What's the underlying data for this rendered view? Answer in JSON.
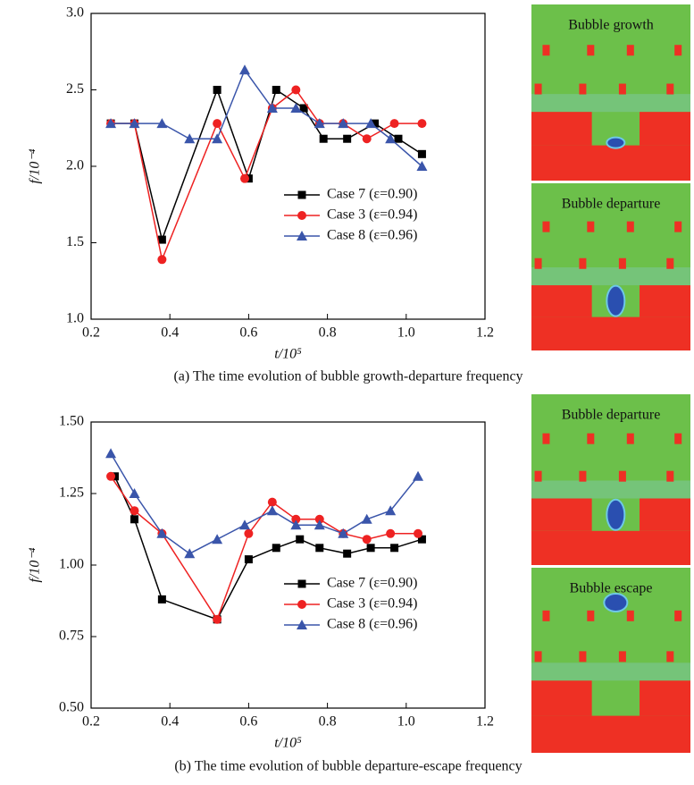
{
  "chart_data": [
    {
      "type": "line",
      "caption": "(a) The time evolution of bubble growth-departure frequency",
      "x_label": "t/10⁵",
      "y_label": "f/10⁻⁴",
      "xlim": [
        0.2,
        1.2
      ],
      "xticks": [
        0.2,
        0.4,
        0.6,
        0.8,
        {
          "value": 1,
          "label": "1.0"
        },
        1.2
      ],
      "ylim": [
        1,
        3
      ],
      "yticks": [
        {
          "value": 1,
          "label": "1.0"
        },
        1.5,
        {
          "value": 2,
          "label": "2.0"
        },
        2.5,
        {
          "value": 3,
          "label": "3.0"
        }
      ],
      "legend": "lower right",
      "series": [
        {
          "name": "Case 7 (ε=0.90)",
          "color": "#000000",
          "marker": "square",
          "x": [
            0.25,
            0.31,
            0.38,
            0.52,
            0.6,
            0.67,
            0.74,
            0.79,
            0.85,
            0.92,
            0.98,
            1.04
          ],
          "values": [
            2.28,
            2.28,
            1.52,
            2.5,
            1.92,
            2.5,
            2.38,
            2.18,
            2.18,
            2.28,
            2.18,
            2.08
          ]
        },
        {
          "name": "Case 3 (ε=0.94)",
          "color": "#ee2222",
          "marker": "circle",
          "x": [
            0.25,
            0.31,
            0.38,
            0.52,
            0.59,
            0.66,
            0.72,
            0.78,
            0.84,
            0.9,
            0.97,
            1.04
          ],
          "values": [
            2.28,
            2.28,
            1.39,
            2.28,
            1.92,
            2.38,
            2.5,
            2.28,
            2.28,
            2.18,
            2.28,
            2.28
          ]
        },
        {
          "name": "Case 8 (ε=0.96)",
          "color": "#3a55aa",
          "marker": "triangle",
          "x": [
            0.25,
            0.31,
            0.38,
            0.45,
            0.52,
            0.59,
            0.66,
            0.72,
            0.78,
            0.84,
            0.91,
            0.96,
            1.04
          ],
          "values": [
            2.28,
            2.28,
            2.28,
            2.18,
            2.18,
            2.63,
            2.38,
            2.38,
            2.28,
            2.28,
            2.28,
            2.18,
            2.0
          ]
        }
      ]
    },
    {
      "type": "line",
      "caption": "(b) The time evolution of bubble departure-escape frequency",
      "x_label": "t/10⁵",
      "y_label": "f/10⁻⁴",
      "xlim": [
        0.2,
        1.2
      ],
      "xticks": [
        0.2,
        0.4,
        0.6,
        0.8,
        {
          "value": 1,
          "label": "1.0"
        },
        1.2
      ],
      "ylim": [
        0.5,
        1.5
      ],
      "yticks": [
        {
          "value": 0.5,
          "label": "0.50"
        },
        0.75,
        {
          "value": 1,
          "label": "1.00"
        },
        1.25,
        {
          "value": 1.5,
          "label": "1.50"
        }
      ],
      "legend": "lower right",
      "series": [
        {
          "name": "Case 7 (ε=0.90)",
          "color": "#000000",
          "marker": "square",
          "x": [
            0.26,
            0.31,
            0.38,
            0.52,
            0.6,
            0.67,
            0.73,
            0.78,
            0.85,
            0.91,
            0.97,
            1.04
          ],
          "values": [
            1.31,
            1.16,
            0.88,
            0.81,
            1.02,
            1.06,
            1.09,
            1.06,
            1.04,
            1.06,
            1.06,
            1.09
          ]
        },
        {
          "name": "Case 3 (ε=0.94)",
          "color": "#ee2222",
          "marker": "circle",
          "x": [
            0.25,
            0.31,
            0.38,
            0.52,
            0.6,
            0.66,
            0.72,
            0.78,
            0.84,
            0.9,
            0.96,
            1.03
          ],
          "values": [
            1.31,
            1.19,
            1.11,
            0.81,
            1.11,
            1.22,
            1.16,
            1.16,
            1.11,
            1.09,
            1.11,
            1.11
          ]
        },
        {
          "name": "Case 8 (ε=0.96)",
          "color": "#3a55aa",
          "marker": "triangle",
          "x": [
            0.25,
            0.31,
            0.38,
            0.45,
            0.52,
            0.59,
            0.66,
            0.72,
            0.78,
            0.84,
            0.9,
            0.96,
            1.03
          ],
          "values": [
            1.39,
            1.25,
            1.11,
            1.04,
            1.09,
            1.14,
            1.19,
            1.14,
            1.14,
            1.11,
            1.16,
            1.19,
            1.31
          ]
        }
      ]
    }
  ],
  "panels": [
    {
      "label": "Bubble growth"
    },
    {
      "label": "Bubble departure"
    },
    {
      "label": "Bubble departure"
    },
    {
      "label": "Bubble escape"
    }
  ]
}
